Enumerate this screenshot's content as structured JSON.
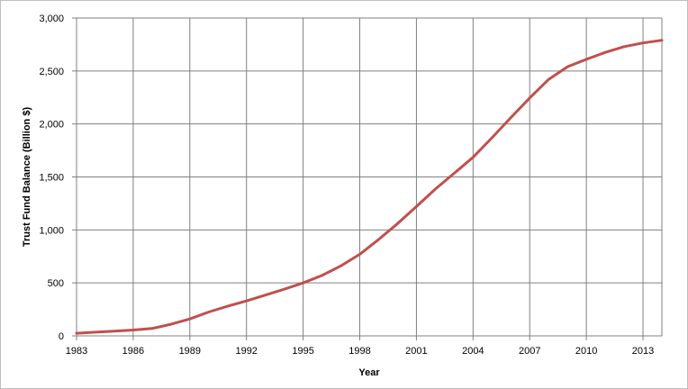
{
  "chart_data": {
    "type": "line",
    "title": "",
    "xlabel": "Year",
    "ylabel": "Trust Fund Balance (Billion $)",
    "xlim": [
      1983,
      2014
    ],
    "ylim": [
      0,
      3000
    ],
    "x_ticks": [
      1983,
      1986,
      1989,
      1992,
      1995,
      1998,
      2001,
      2004,
      2007,
      2010,
      2013
    ],
    "y_ticks": [
      0,
      500,
      1000,
      1500,
      2000,
      2500,
      3000
    ],
    "y_tick_labels": [
      "0",
      "500",
      "1,000",
      "1,500",
      "2,000",
      "2,500",
      "3,000"
    ],
    "grid": true,
    "legend": "none",
    "series": [
      {
        "color": "#c0504d",
        "x": [
          1983,
          1984,
          1985,
          1986,
          1987,
          1988,
          1989,
          1990,
          1991,
          1992,
          1993,
          1994,
          1995,
          1996,
          1997,
          1998,
          1999,
          2000,
          2001,
          2002,
          2003,
          2004,
          2005,
          2006,
          2007,
          2008,
          2009,
          2010,
          2011,
          2012,
          2013,
          2014
        ],
        "values": [
          25,
          35,
          45,
          55,
          70,
          110,
          160,
          225,
          280,
          330,
          385,
          440,
          500,
          570,
          660,
          770,
          910,
          1060,
          1220,
          1385,
          1535,
          1685,
          1870,
          2060,
          2245,
          2420,
          2540,
          2610,
          2675,
          2730,
          2765,
          2790
        ]
      }
    ]
  }
}
